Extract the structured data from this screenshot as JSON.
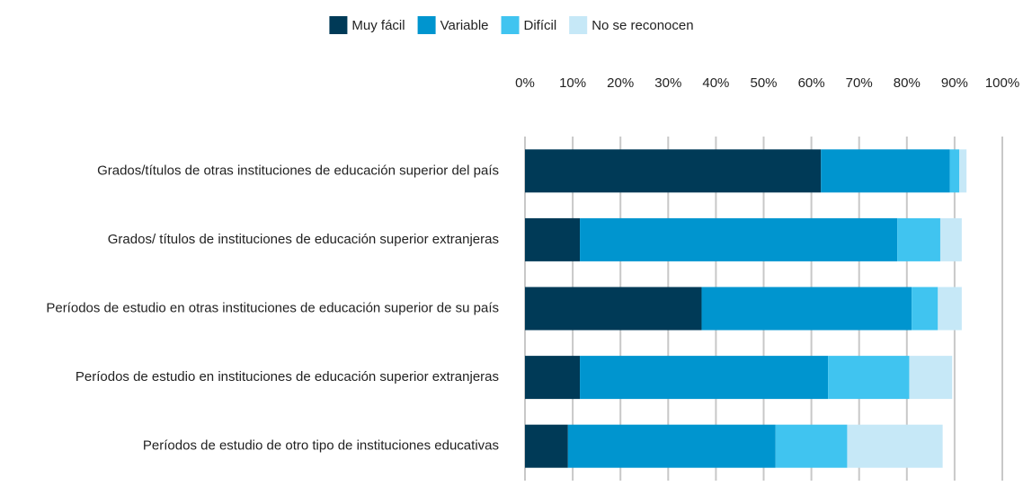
{
  "chart_data": {
    "type": "stacked-barh",
    "categories": [
      "Grados/títulos de otras instituciones de educación superior del país",
      "Grados/ títulos de instituciones de educación superior extranjeras",
      "Períodos de estudio en otras instituciones de educación superior de su país",
      "Períodos de estudio en instituciones de educación superior extranjeras",
      "Períodos de estudio de otro tipo de instituciones educativas"
    ],
    "series": [
      {
        "name": "Muy fácil",
        "color": "#003a57",
        "values": [
          62,
          11.5,
          37,
          11.5,
          9
        ]
      },
      {
        "name": "Variable",
        "color": "#0095cf",
        "values": [
          27,
          66.5,
          44,
          52,
          43.5
        ]
      },
      {
        "name": "Difícil",
        "color": "#40c4f0",
        "values": [
          2,
          9,
          5.5,
          17,
          15
        ]
      },
      {
        "name": "No se reconocen",
        "color": "#c6e8f7",
        "values": [
          1.5,
          4.5,
          5,
          9,
          20
        ]
      }
    ],
    "xlim": [
      0,
      100
    ],
    "xticks": [
      {
        "value": 0,
        "label": "0%"
      },
      {
        "value": 10,
        "label": "10%"
      },
      {
        "value": 20,
        "label": "20%"
      },
      {
        "value": 30,
        "label": "30%"
      },
      {
        "value": 40,
        "label": "40%"
      },
      {
        "value": 50,
        "label": "50%"
      },
      {
        "value": 60,
        "label": "60%"
      },
      {
        "value": 70,
        "label": "70%"
      },
      {
        "value": 80,
        "label": "80%"
      },
      {
        "value": 90,
        "label": "90%"
      },
      {
        "value": 100,
        "label": "100%"
      }
    ],
    "grid": true,
    "legend": "top"
  }
}
